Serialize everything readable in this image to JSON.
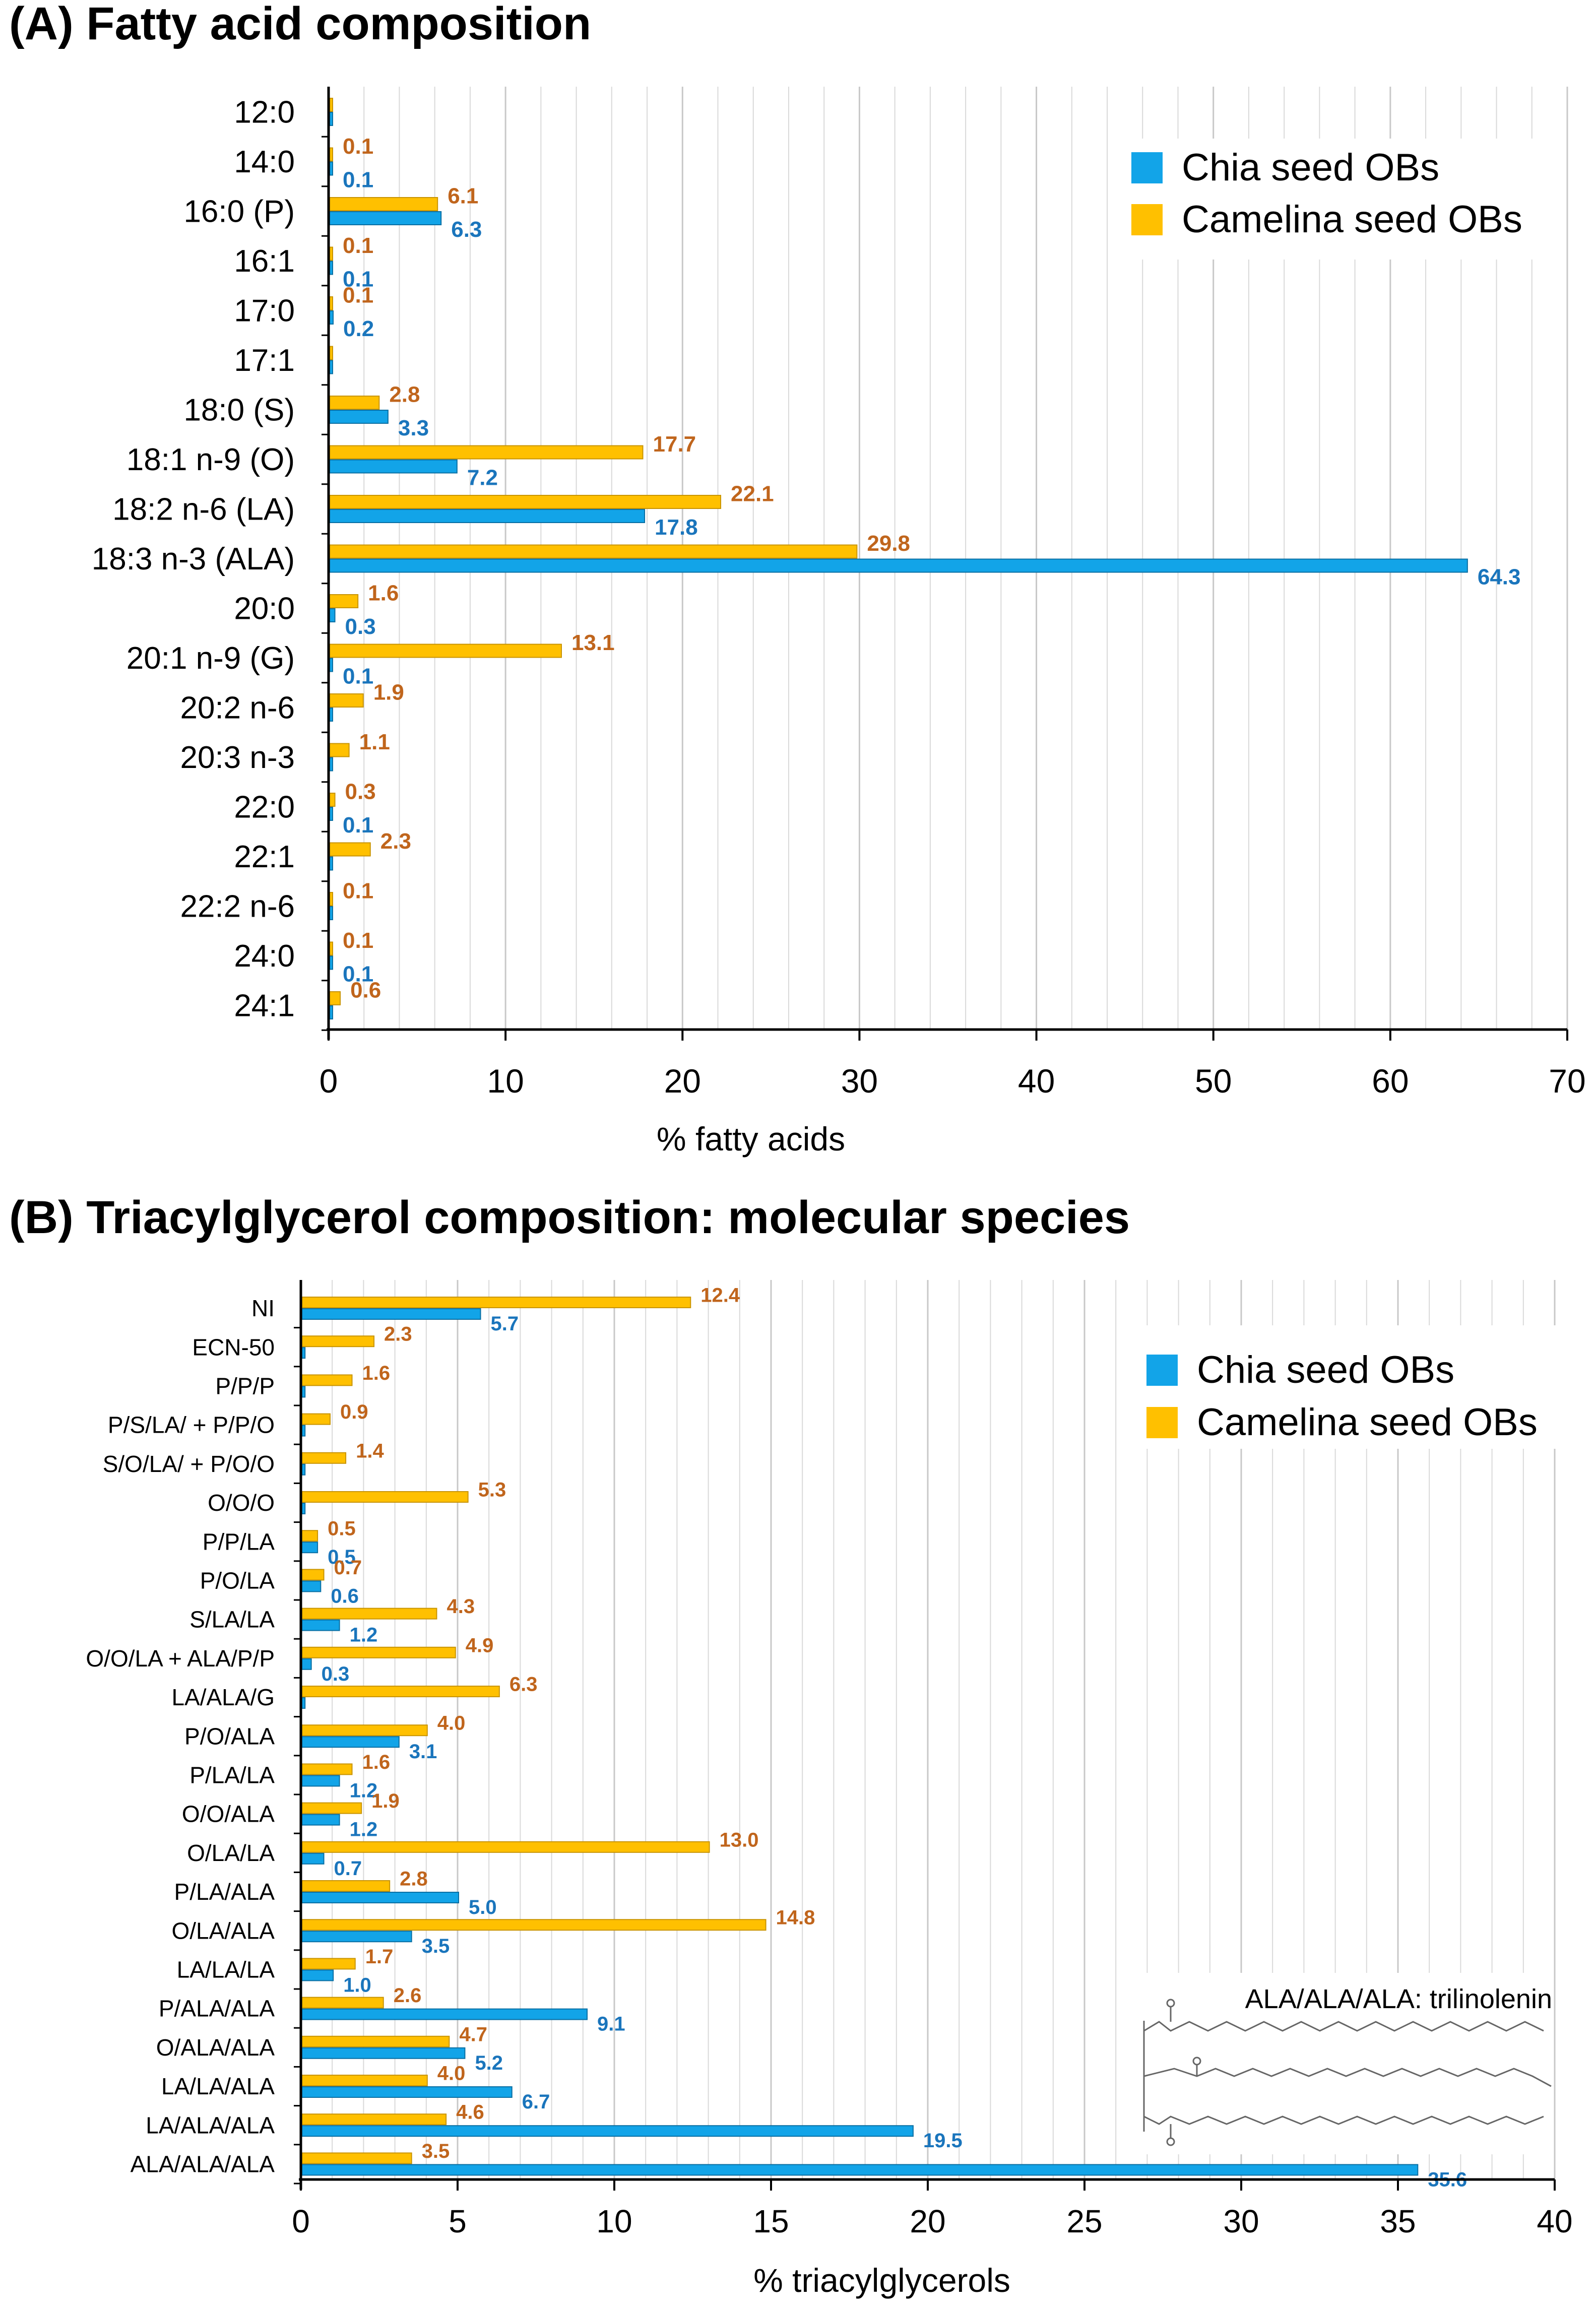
{
  "colors": {
    "chia": "#12a4e8",
    "chia_edge": "#0a6fa3",
    "camelina": "#ffc000",
    "camelina_edge": "#c99400",
    "chia_label": "#1a75bc",
    "camelina_label": "#c0651c",
    "grid": "#d9d9d9"
  },
  "chart_data": [
    {
      "type": "bar",
      "orientation": "horizontal",
      "title": "(A) Fatty acid composition",
      "xlabel": "% fatty acids",
      "xlim": [
        0,
        70
      ],
      "xticks": [
        0,
        10,
        20,
        30,
        40,
        50,
        60,
        70
      ],
      "grid": true,
      "legend_position": "top-right",
      "categories": [
        "12:0",
        "14:0",
        "16:0 (P)",
        "16:1",
        "17:0",
        "17:1",
        "18:0 (S)",
        "18:1 n-9 (O)",
        "18:2 n-6 (LA)",
        "18:3 n-3 (ALA)",
        "20:0",
        "20:1 n-9 (G)",
        "20:2 n-6",
        "20:3 n-3",
        "22:0",
        "22:1",
        "22:2 n-6",
        "24:0",
        "24:1"
      ],
      "series": [
        {
          "name": "Chia seed OBs",
          "values": [
            0.05,
            0.1,
            6.3,
            0.1,
            0.2,
            0.05,
            3.3,
            7.2,
            17.8,
            64.3,
            0.3,
            0.1,
            0.05,
            0.05,
            0.1,
            0.05,
            0.05,
            0.1,
            0.05
          ],
          "labels": [
            "",
            "0.1",
            "6.3",
            "0.1",
            "0.2",
            "",
            "3.3",
            "7.2",
            "17.8",
            "64.3",
            "0.3",
            "0.1",
            "",
            "",
            "0.1",
            "",
            "",
            "0.1",
            ""
          ]
        },
        {
          "name": "Camelina seed OBs",
          "values": [
            0.05,
            0.1,
            6.1,
            0.1,
            0.1,
            0.05,
            2.8,
            17.7,
            22.1,
            29.8,
            1.6,
            13.1,
            1.9,
            1.1,
            0.3,
            2.3,
            0.1,
            0.1,
            0.6
          ],
          "labels": [
            "",
            "0.1",
            "6.1",
            "0.1",
            "0.1",
            "",
            "2.8",
            "17.7",
            "22.1",
            "29.8",
            "1.6",
            "13.1",
            "1.9",
            "1.1",
            "0.3",
            "2.3",
            "0.1",
            "0.1",
            "0.6"
          ]
        }
      ]
    },
    {
      "type": "bar",
      "orientation": "horizontal",
      "title": "(B) Triacylglycerol composition: molecular species",
      "xlabel": "% triacylglycerols",
      "xlim": [
        0,
        40
      ],
      "xticks": [
        0,
        5,
        10,
        15,
        20,
        25,
        30,
        35,
        40
      ],
      "grid": true,
      "legend_position": "top-right",
      "annotation": "ALA/ALA/ALA: trilinolenin",
      "categories": [
        "NI",
        "ECN-50",
        "P/P/P",
        "P/S/LA/ + P/P/O",
        "S/O/LA/ + P/O/O",
        "O/O/O",
        "P/P/LA",
        "P/O/LA",
        "S/LA/LA",
        "O/O/LA + ALA/P/P",
        "LA/ALA/G",
        "P/O/ALA",
        "P/LA/LA",
        "O/O/ALA",
        "O/LA/LA",
        "P/LA/ALA",
        "O/LA/ALA",
        "LA/LA/LA",
        "P/ALA/ALA",
        "O/ALA/ALA",
        "LA/LA/ALA",
        "LA/ALA/ALA",
        "ALA/ALA/ALA"
      ],
      "series": [
        {
          "name": "Chia seed OBs",
          "values": [
            5.7,
            0.1,
            0.1,
            0.1,
            0.1,
            0.1,
            0.5,
            0.6,
            1.2,
            0.3,
            0.1,
            3.1,
            1.2,
            1.2,
            0.7,
            5.0,
            3.5,
            1.0,
            9.1,
            5.2,
            6.7,
            19.5,
            35.6
          ],
          "labels": [
            "5.7",
            "",
            "",
            "",
            "",
            "",
            "0.5",
            "0.6",
            "1.2",
            "0.3",
            "",
            "3.1",
            "1.2",
            "1.2",
            "0.7",
            "5.0",
            "3.5",
            "1.0",
            "9.1",
            "5.2",
            "6.7",
            "19.5",
            "35.6"
          ]
        },
        {
          "name": "Camelina seed OBs",
          "values": [
            12.4,
            2.3,
            1.6,
            0.9,
            1.4,
            5.3,
            0.5,
            0.7,
            4.3,
            4.9,
            6.3,
            4.0,
            1.6,
            1.9,
            13.0,
            2.8,
            14.8,
            1.7,
            2.6,
            4.7,
            4.0,
            4.6,
            3.5
          ],
          "labels": [
            "12.4",
            "2.3",
            "1.6",
            "0.9",
            "1.4",
            "5.3",
            "0.5",
            "0.7",
            "4.3",
            "4.9",
            "6.3",
            "4.0",
            "1.6",
            "1.9",
            "13.0",
            "2.8",
            "14.8",
            "1.7",
            "2.6",
            "4.7",
            "4.0",
            "4.6",
            "3.5"
          ]
        }
      ]
    }
  ]
}
